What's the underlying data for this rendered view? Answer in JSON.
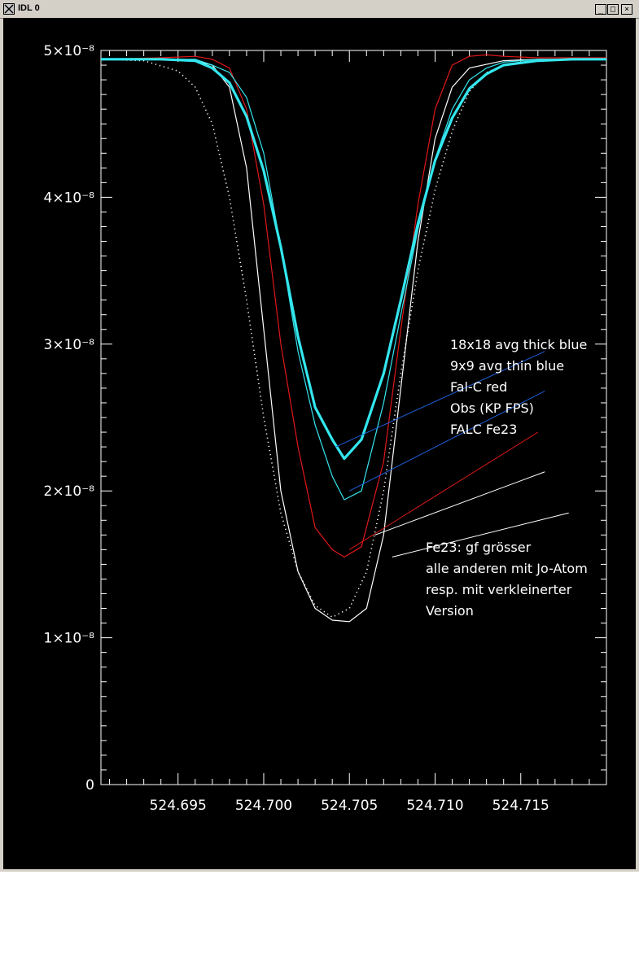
{
  "window": {
    "title": "IDL 0",
    "minimize_glyph": "_",
    "maximize_glyph": "□",
    "close_glyph": "×"
  },
  "chart_data": {
    "type": "line",
    "xlim": [
      524.6905,
      524.72
    ],
    "ylim": [
      0,
      5e-08
    ],
    "x_ticks": [
      "524.695",
      "524.700",
      "524.705",
      "524.710",
      "524.715"
    ],
    "y_ticks": [
      "0",
      "1×10⁻⁸",
      "2×10⁻⁸",
      "3×10⁻⁸",
      "4×10⁻⁸",
      "5×10⁻⁸"
    ],
    "y_tick_values": [
      0,
      1e-08,
      2e-08,
      3e-08,
      4e-08,
      5e-08
    ],
    "x_tick_values": [
      524.695,
      524.7,
      524.705,
      524.71,
      524.715
    ],
    "legend_entries": [
      "18x18 avg thick blue",
      "9x9 avg thin blue",
      "Fal-C  red",
      "Obs (KP FPS)",
      "FALC Fe23"
    ],
    "note_lines": [
      "Fe23: gf grösser",
      "alle anderen mit Jo-Atom",
      "resp. mit verkleinerter",
      "Version"
    ],
    "colors": {
      "thick_blue": "#33e6ee",
      "thin_blue": "#33e6ee",
      "red": "#e01818",
      "obs": "#ffffff",
      "falc_fe23": "#ffffff",
      "axis": "#ffffff",
      "pointer_blue": "#1e5fd8",
      "pointer_red": "#d01818",
      "pointer_white": "#ffffff"
    },
    "series": [
      {
        "name": "18x18 avg thick blue",
        "style": "thick",
        "color": "#33e6ee",
        "x": [
          524.6905,
          524.692,
          524.694,
          524.696,
          524.697,
          524.698,
          524.699,
          524.7,
          524.701,
          524.702,
          524.703,
          524.704,
          524.7047,
          524.7057,
          524.707,
          524.708,
          524.709,
          524.71,
          524.711,
          524.712,
          524.713,
          524.714,
          524.716,
          524.718,
          524.72
        ],
        "y": [
          4.94e-08,
          4.94e-08,
          4.94e-08,
          4.93e-08,
          4.88e-08,
          4.78e-08,
          4.55e-08,
          4.18e-08,
          3.66e-08,
          3.05e-08,
          2.57e-08,
          2.35e-08,
          2.22e-08,
          2.35e-08,
          2.8e-08,
          3.3e-08,
          3.82e-08,
          4.25e-08,
          4.54e-08,
          4.74e-08,
          4.84e-08,
          4.9e-08,
          4.93e-08,
          4.94e-08,
          4.94e-08
        ]
      },
      {
        "name": "9x9 avg thin blue",
        "style": "thin",
        "color": "#33e6ee",
        "x": [
          524.6905,
          524.692,
          524.694,
          524.696,
          524.697,
          524.698,
          524.699,
          524.7,
          524.701,
          524.702,
          524.703,
          524.704,
          524.7047,
          524.7057,
          524.707,
          524.708,
          524.709,
          524.71,
          524.711,
          524.712,
          524.713,
          524.714,
          524.716,
          524.718,
          524.72
        ],
        "y": [
          4.94e-08,
          4.94e-08,
          4.94e-08,
          4.94e-08,
          4.9e-08,
          4.85e-08,
          4.68e-08,
          4.3e-08,
          3.66e-08,
          2.95e-08,
          2.45e-08,
          2.1e-08,
          1.94e-08,
          2e-08,
          2.6e-08,
          3.2e-08,
          3.78e-08,
          4.26e-08,
          4.6e-08,
          4.8e-08,
          4.88e-08,
          4.92e-08,
          4.94e-08,
          4.94e-08,
          4.94e-08
        ]
      },
      {
        "name": "Fal-C  red",
        "style": "thin",
        "color": "#e01818",
        "x": [
          524.6905,
          524.694,
          524.696,
          524.697,
          524.698,
          524.699,
          524.7,
          524.701,
          524.702,
          524.703,
          524.704,
          524.7047,
          524.7057,
          524.707,
          524.708,
          524.709,
          524.71,
          524.711,
          524.712,
          524.713,
          524.714,
          524.716,
          524.72
        ],
        "y": [
          4.94e-08,
          4.95e-08,
          4.96e-08,
          4.94e-08,
          4.88e-08,
          4.6e-08,
          3.95e-08,
          3e-08,
          2.3e-08,
          1.75e-08,
          1.6e-08,
          1.55e-08,
          1.62e-08,
          2.2e-08,
          3.1e-08,
          3.95e-08,
          4.6e-08,
          4.9e-08,
          4.96e-08,
          4.97e-08,
          4.96e-08,
          4.95e-08,
          4.95e-08
        ]
      },
      {
        "name": "Obs (KP FPS)",
        "style": "dotted",
        "color": "#ffffff",
        "x": [
          524.6905,
          524.693,
          524.695,
          524.696,
          524.697,
          524.698,
          524.699,
          524.7,
          524.701,
          524.702,
          524.703,
          524.704,
          524.705,
          524.706,
          524.707,
          524.708,
          524.709,
          524.71,
          524.711,
          524.712,
          524.713,
          524.714,
          524.716,
          524.72
        ],
        "y": [
          4.94e-08,
          4.93e-08,
          4.86e-08,
          4.75e-08,
          4.5e-08,
          4e-08,
          3.3e-08,
          2.5e-08,
          1.85e-08,
          1.45e-08,
          1.22e-08,
          1.14e-08,
          1.2e-08,
          1.45e-08,
          2e-08,
          2.8e-08,
          3.5e-08,
          4.05e-08,
          4.45e-08,
          4.72e-08,
          4.85e-08,
          4.9e-08,
          4.93e-08,
          4.94e-08
        ]
      },
      {
        "name": "FALC Fe23",
        "style": "thin",
        "color": "#ffffff",
        "x": [
          524.6905,
          524.694,
          524.696,
          524.697,
          524.698,
          524.699,
          524.7,
          524.701,
          524.702,
          524.703,
          524.704,
          524.705,
          524.706,
          524.707,
          524.708,
          524.709,
          524.71,
          524.711,
          524.712,
          524.714,
          524.716,
          524.72
        ],
        "y": [
          4.94e-08,
          4.94e-08,
          4.93e-08,
          4.9e-08,
          4.75e-08,
          4.2e-08,
          3.1e-08,
          2e-08,
          1.45e-08,
          1.2e-08,
          1.12e-08,
          1.11e-08,
          1.2e-08,
          1.7e-08,
          2.7e-08,
          3.7e-08,
          4.4e-08,
          4.75e-08,
          4.88e-08,
          4.93e-08,
          4.94e-08,
          4.94e-08
        ]
      }
    ],
    "pointers": [
      {
        "from": [
          524.7164,
          2.95e-08
        ],
        "to": [
          524.7042,
          2.3e-08
        ],
        "color": "#1e5fd8"
      },
      {
        "from": [
          524.7164,
          2.68e-08
        ],
        "to": [
          524.705,
          2e-08
        ],
        "color": "#1e5fd8"
      },
      {
        "from": [
          524.716,
          2.4e-08
        ],
        "to": [
          524.705,
          1.6e-08
        ],
        "color": "#d01818"
      },
      {
        "from": [
          524.7164,
          2.13e-08
        ],
        "to": [
          524.7065,
          1.7e-08
        ],
        "color": "#ffffff"
      },
      {
        "from": [
          524.7178,
          1.85e-08
        ],
        "to": [
          524.7075,
          1.55e-08
        ],
        "color": "#ffffff"
      }
    ]
  }
}
